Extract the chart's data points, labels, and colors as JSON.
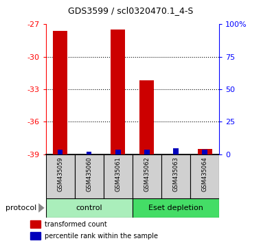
{
  "title": "GDS3599 / scl0320470.1_4-S",
  "samples": [
    "GSM435059",
    "GSM435060",
    "GSM435061",
    "GSM435062",
    "GSM435063",
    "GSM435064"
  ],
  "transformed_counts": [
    -27.6,
    -39.0,
    -27.5,
    -32.2,
    -39.0,
    -38.5
  ],
  "percentile_ranks": [
    3.5,
    2.0,
    3.5,
    3.5,
    4.5,
    3.5
  ],
  "ylim_left": [
    -39,
    -27
  ],
  "ylim_right": [
    0,
    100
  ],
  "yticks_left": [
    -39,
    -36,
    -33,
    -30,
    -27
  ],
  "yticks_right": [
    0,
    25,
    50,
    75,
    100
  ],
  "yticklabels_right": [
    "0",
    "25",
    "50",
    "75",
    "100%"
  ],
  "bar_color_red": "#cc0000",
  "bar_color_blue": "#0000bb",
  "control_color": "#aaeebb",
  "eset_color": "#44dd66",
  "legend_items": [
    "transformed count",
    "percentile rank within the sample"
  ],
  "protocol_label": "protocol",
  "bar_bottom": -39,
  "red_bar_width": 0.5,
  "blue_bar_width": 0.18
}
